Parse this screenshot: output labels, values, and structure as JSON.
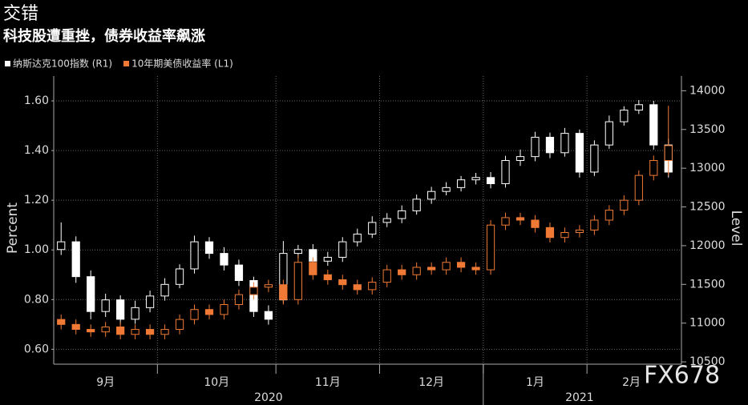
{
  "chart_data": {
    "type": "candlestick",
    "title": "交错",
    "subtitle": "科技股遭重挫，债券收益率飙涨",
    "y_label": "Percent",
    "y2_label": "Level",
    "watermark": "FX678",
    "grid": true,
    "categories": [
      "9月",
      null,
      null,
      null,
      null,
      null,
      null,
      "10月",
      null,
      null,
      null,
      null,
      null,
      null,
      null,
      "11月",
      null,
      null,
      null,
      null,
      null,
      null,
      "12月",
      null,
      null,
      null,
      null,
      null,
      null,
      "1月",
      null,
      null,
      null,
      null,
      null,
      null,
      "2月",
      null,
      null,
      null,
      null,
      null
    ],
    "year_categories": [
      "2020",
      null,
      null,
      null,
      null,
      null,
      null,
      null,
      null,
      null,
      null,
      null,
      null,
      null,
      null,
      null,
      null,
      null,
      null,
      null,
      null,
      null,
      null,
      null,
      null,
      null,
      null,
      null,
      null,
      "2021",
      null,
      null,
      null,
      null,
      null,
      null,
      null,
      null,
      null,
      null,
      null,
      null
    ],
    "ylim": [
      0.54,
      1.7
    ],
    "yticks": [
      {
        "value": 0.6,
        "label": "0.60"
      },
      {
        "value": 0.8,
        "label": "0.80"
      },
      {
        "value": 1.0,
        "label": "1.00"
      },
      {
        "value": 1.2,
        "label": "1.20"
      },
      {
        "value": 1.4,
        "label": "1.40"
      },
      {
        "value": 1.6,
        "label": "1.60"
      }
    ],
    "y2lim": [
      10470,
      14190
    ],
    "y2ticks": [
      10500,
      11000,
      11500,
      12000,
      12500,
      13000,
      13500,
      14000
    ],
    "series": [
      {
        "name": "纳斯达克100指数 (R1)",
        "color": "#ffffff",
        "axis": "y2",
        "open": [
          11950,
          12050,
          11600,
          11150,
          11300,
          11050,
          11200,
          11350,
          11500,
          11700,
          12050,
          11900,
          11750,
          11550,
          11150,
          11300,
          11900,
          11950,
          11800,
          11850,
          12050,
          12150,
          12300,
          12350,
          12450,
          12600,
          12700,
          12750,
          12850,
          12880,
          12800,
          13100,
          13150,
          13400,
          13200,
          13450,
          12950,
          13300,
          13600,
          13750,
          13820,
          13300
        ],
        "high": [
          12300,
          12120,
          11680,
          11380,
          11360,
          11290,
          11420,
          11580,
          11760,
          12130,
          12110,
          11980,
          11820,
          11600,
          11230,
          12060,
          12010,
          12020,
          11920,
          12110,
          12220,
          12380,
          12420,
          12520,
          12660,
          12760,
          12820,
          12900,
          12940,
          12950,
          13160,
          13240,
          13470,
          13460,
          13520,
          13500,
          13360,
          13680,
          13800,
          13880,
          13870,
          13380
        ],
        "low": [
          11880,
          11520,
          11050,
          11080,
          10980,
          10990,
          11140,
          11290,
          11450,
          11640,
          11830,
          11680,
          11480,
          11080,
          10980,
          11260,
          11840,
          11730,
          11740,
          11790,
          11990,
          12100,
          12240,
          12290,
          12400,
          12540,
          12650,
          12700,
          12790,
          12740,
          12750,
          13030,
          13090,
          13130,
          13150,
          12880,
          12900,
          13250,
          13550,
          13700,
          13240,
          12880
        ],
        "close": [
          12050,
          11600,
          11150,
          11300,
          11050,
          11200,
          11350,
          11500,
          11700,
          12050,
          11900,
          11750,
          11550,
          11150,
          11050,
          11900,
          11950,
          11800,
          11850,
          12050,
          12150,
          12300,
          12350,
          12450,
          12600,
          12700,
          12750,
          12850,
          12880,
          12800,
          13100,
          13150,
          13400,
          13200,
          13450,
          12950,
          13300,
          13600,
          13750,
          13820,
          13300,
          12950
        ]
      },
      {
        "name": "10年期美债收益率 (L1)",
        "color": "#f07a35",
        "axis": "y",
        "open": [
          0.72,
          0.7,
          0.68,
          0.67,
          0.69,
          0.66,
          0.68,
          0.66,
          0.68,
          0.72,
          0.76,
          0.74,
          0.78,
          0.82,
          0.85,
          0.86,
          0.8,
          0.95,
          0.9,
          0.88,
          0.86,
          0.84,
          0.87,
          0.92,
          0.9,
          0.93,
          0.92,
          0.95,
          0.93,
          0.92,
          1.1,
          1.13,
          1.12,
          1.09,
          1.05,
          1.07,
          1.08,
          1.12,
          1.16,
          1.2,
          1.3,
          1.36
        ],
        "high": [
          0.74,
          0.72,
          0.7,
          0.71,
          0.71,
          0.7,
          0.7,
          0.7,
          0.74,
          0.78,
          0.78,
          0.8,
          0.84,
          0.87,
          0.88,
          0.88,
          0.98,
          0.97,
          0.92,
          0.9,
          0.88,
          0.89,
          0.94,
          0.94,
          0.95,
          0.95,
          0.97,
          0.97,
          0.95,
          1.12,
          1.15,
          1.15,
          1.14,
          1.11,
          1.09,
          1.1,
          1.14,
          1.18,
          1.22,
          1.32,
          1.38,
          1.58
        ],
        "low": [
          0.68,
          0.66,
          0.65,
          0.65,
          0.64,
          0.64,
          0.64,
          0.64,
          0.66,
          0.7,
          0.72,
          0.72,
          0.76,
          0.8,
          0.83,
          0.78,
          0.78,
          0.88,
          0.86,
          0.84,
          0.82,
          0.82,
          0.85,
          0.88,
          0.88,
          0.9,
          0.9,
          0.91,
          0.9,
          0.9,
          1.08,
          1.1,
          1.07,
          1.03,
          1.03,
          1.05,
          1.06,
          1.1,
          1.14,
          1.18,
          1.28,
          1.3
        ],
        "close": [
          0.7,
          0.68,
          0.67,
          0.69,
          0.66,
          0.68,
          0.66,
          0.68,
          0.72,
          0.76,
          0.74,
          0.78,
          0.82,
          0.85,
          0.86,
          0.8,
          0.95,
          0.9,
          0.88,
          0.86,
          0.84,
          0.87,
          0.92,
          0.9,
          0.93,
          0.92,
          0.95,
          0.93,
          0.92,
          1.1,
          1.13,
          1.12,
          1.09,
          1.05,
          1.07,
          1.08,
          1.12,
          1.16,
          1.2,
          1.3,
          1.36,
          1.42
        ]
      }
    ]
  }
}
